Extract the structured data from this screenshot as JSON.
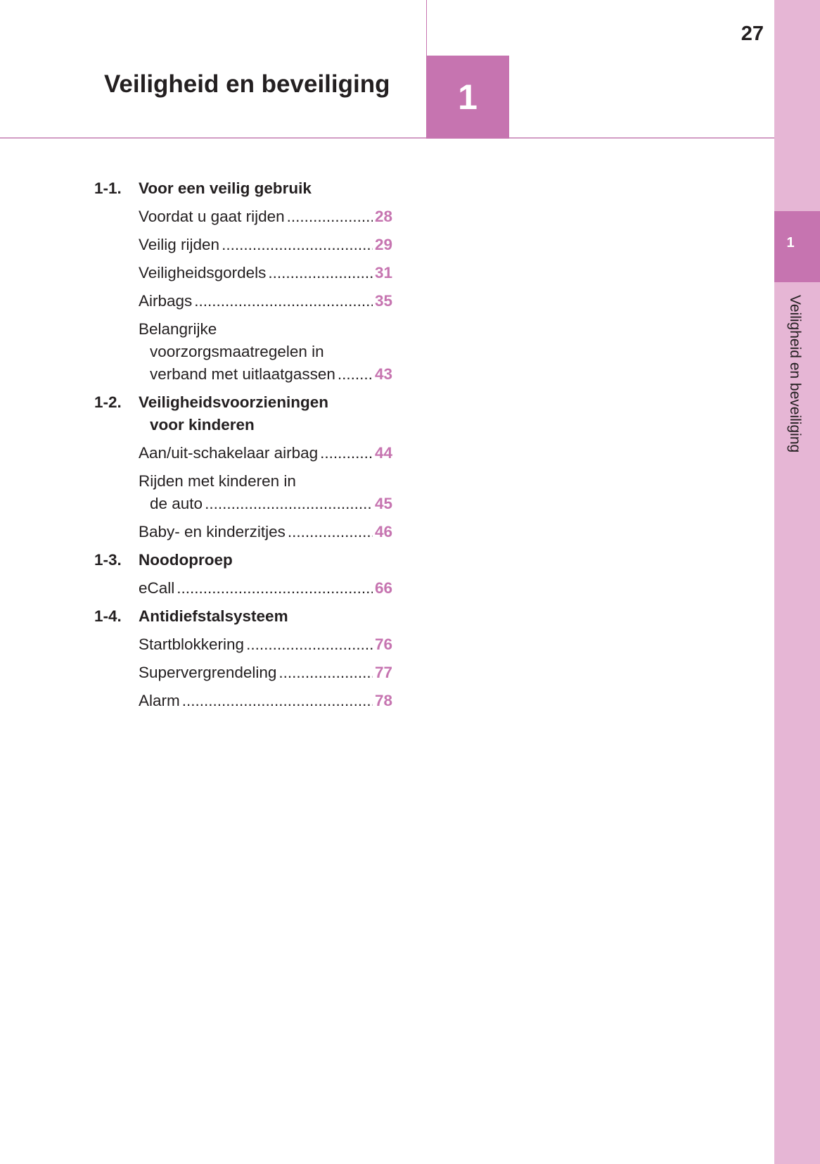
{
  "page_number": "27",
  "chapter": {
    "number": "1",
    "title": "Veiligheid en beveiliging"
  },
  "side_tab": {
    "number": "1",
    "label": "Veiligheid en beveiliging"
  },
  "colors": {
    "accent": "#c674b0",
    "band": "#e6b6d5"
  },
  "sections": [
    {
      "number": "1-1.",
      "title_lines": [
        "Voor een veilig gebruik"
      ],
      "entries": [
        {
          "lines": [
            "Voordat u gaat rijden"
          ],
          "page": "28"
        },
        {
          "lines": [
            "Veilig rijden"
          ],
          "page": "29"
        },
        {
          "lines": [
            "Veiligheidsgordels"
          ],
          "page": "31"
        },
        {
          "lines": [
            "Airbags"
          ],
          "page": "35"
        },
        {
          "lines": [
            "Belangrijke",
            "voorzorgsmaatregelen in",
            "verband met uitlaatgassen"
          ],
          "page": "43"
        }
      ]
    },
    {
      "number": "1-2.",
      "title_lines": [
        "Veiligheidsvoorzieningen",
        "voor kinderen"
      ],
      "entries": [
        {
          "lines": [
            "Aan/uit-schakelaar airbag"
          ],
          "page": "44"
        },
        {
          "lines": [
            "Rijden met kinderen in",
            "de auto"
          ],
          "page": "45"
        },
        {
          "lines": [
            "Baby- en kinderzitjes"
          ],
          "page": "46"
        }
      ]
    },
    {
      "number": "1-3.",
      "title_lines": [
        "Noodoproep"
      ],
      "entries": [
        {
          "lines": [
            "eCall"
          ],
          "page": "66"
        }
      ]
    },
    {
      "number": "1-4.",
      "title_lines": [
        "Antidiefstalsysteem"
      ],
      "entries": [
        {
          "lines": [
            "Startblokkering"
          ],
          "page": "76"
        },
        {
          "lines": [
            "Supervergrendeling"
          ],
          "page": "77"
        },
        {
          "lines": [
            "Alarm"
          ],
          "page": "78"
        }
      ]
    }
  ]
}
